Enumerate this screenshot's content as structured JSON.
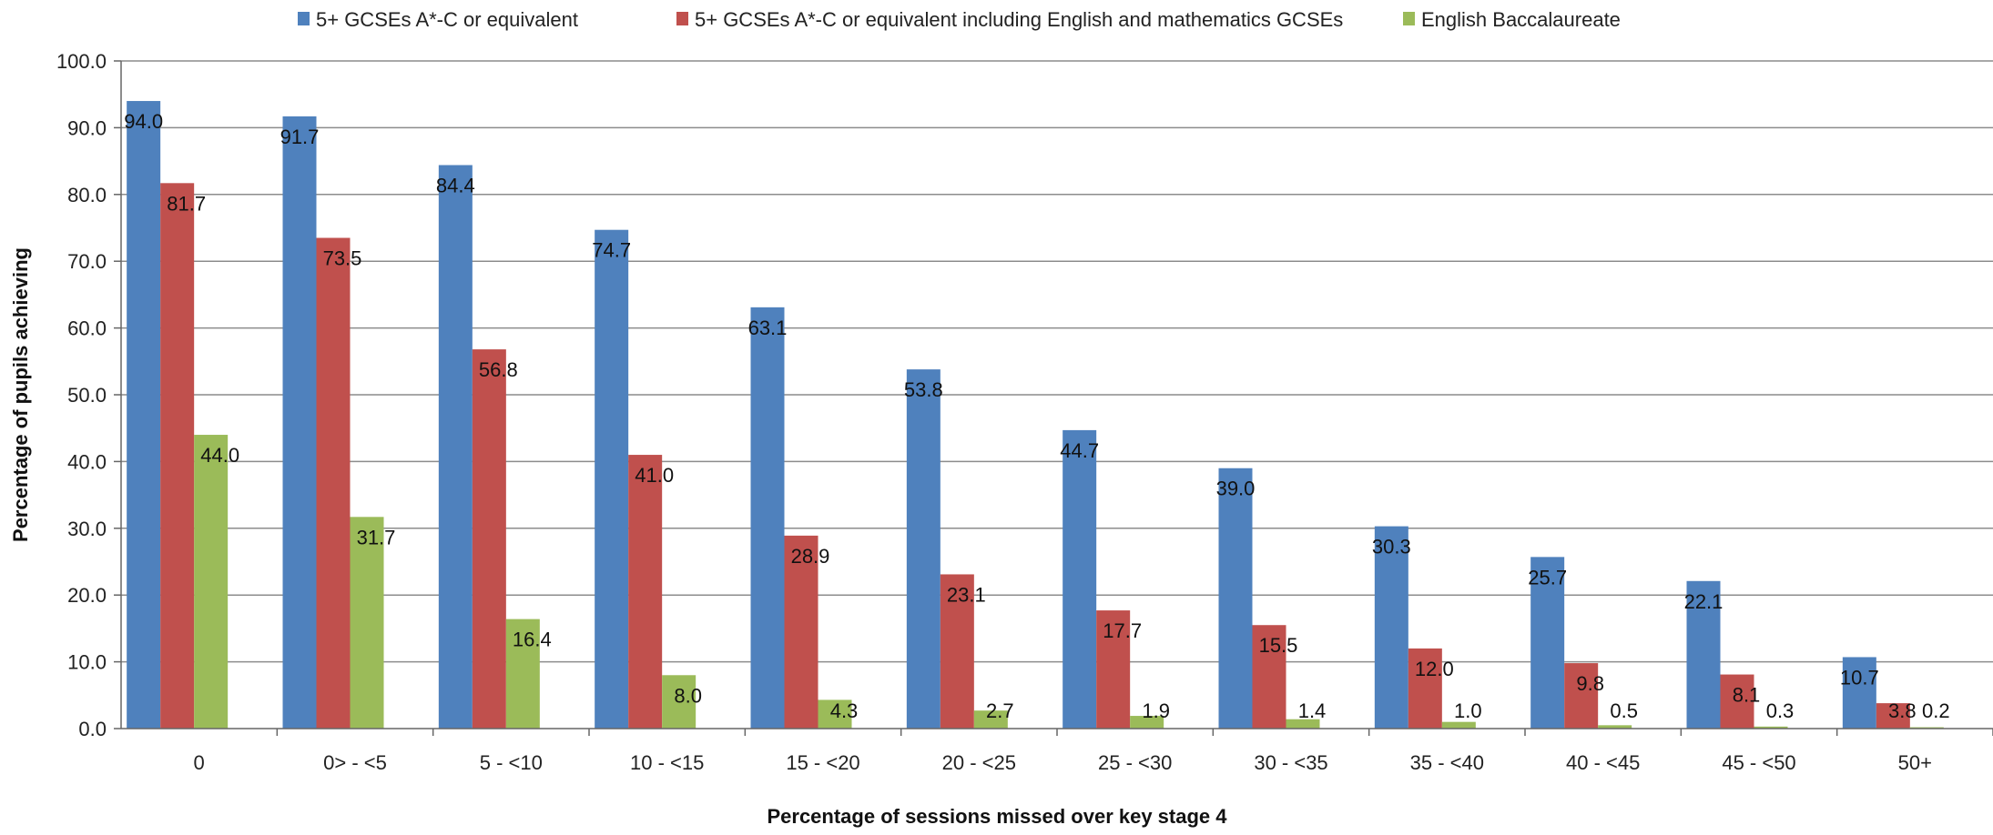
{
  "chart_data": {
    "type": "bar",
    "title": "",
    "xlabel": "Percentage of sessions missed over key stage 4",
    "ylabel": "Percentage of pupils achieving",
    "ylim": [
      0,
      100
    ],
    "yticks": [
      "0.0",
      "10.0",
      "20.0",
      "30.0",
      "40.0",
      "50.0",
      "60.0",
      "70.0",
      "80.0",
      "90.0",
      "100.0"
    ],
    "grid": true,
    "legend_position": "top",
    "categories": [
      "0",
      "0> - <5",
      "5 - <10",
      "10 - <15",
      "15 - <20",
      "20 - <25",
      "25 - <30",
      "30 - <35",
      "35 - <40",
      "40 - <45",
      "45 - <50",
      "50+"
    ],
    "series": [
      {
        "name": "5+ GCSEs A*-C or equivalent",
        "color": "#4F81BD",
        "values": [
          94.0,
          91.7,
          84.4,
          74.7,
          63.1,
          53.8,
          44.7,
          39.0,
          30.3,
          25.7,
          22.1,
          10.7
        ],
        "labels": [
          "94.0",
          "91.7",
          "84.4",
          "74.7",
          "63.1",
          "53.8",
          "44.7",
          "39.0",
          "30.3",
          "25.7",
          "22.1",
          "10.7"
        ]
      },
      {
        "name": "5+ GCSEs A*-C or equivalent including English and mathematics GCSEs",
        "color": "#C0504D",
        "values": [
          81.7,
          73.5,
          56.8,
          41.0,
          28.9,
          23.1,
          17.7,
          15.5,
          12.0,
          9.8,
          8.1,
          3.8
        ],
        "labels": [
          "81.7",
          "73.5",
          "56.8",
          "41.0",
          "28.9",
          "23.1",
          "17.7",
          "15.5",
          "12.0",
          "9.8",
          "8.1",
          "3.8"
        ]
      },
      {
        "name": "English Baccalaureate",
        "color": "#9BBB59",
        "values": [
          44.0,
          31.7,
          16.4,
          8.0,
          4.3,
          2.7,
          1.9,
          1.4,
          1.0,
          0.5,
          0.3,
          0.2
        ],
        "labels": [
          "44.0",
          "31.7",
          "16.4",
          "8.0",
          "4.3",
          "2.7",
          "1.9",
          "1.4",
          "1.0",
          "0.5",
          "0.3",
          "0.2"
        ]
      }
    ]
  }
}
